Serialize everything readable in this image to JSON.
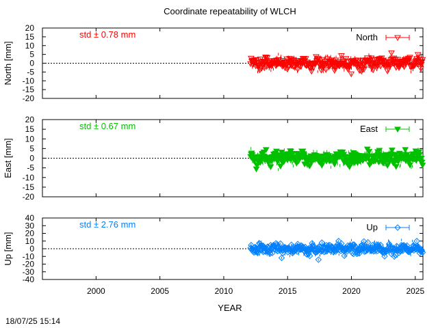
{
  "chart_data": {
    "type": "scatter",
    "title": "Coordinate repeatability of WLCH",
    "xlabel": "YEAR",
    "timestamp": "18/07/25 15:14",
    "xlim": [
      1995.8,
      2025.6
    ],
    "xticks": [
      2000,
      2005,
      2010,
      2015,
      2020,
      2025
    ],
    "data_range": [
      2012.1,
      2025.6
    ],
    "panels": [
      {
        "id": "north",
        "ylabel": "North [mm]",
        "legend": "North",
        "std_label": "std ± 0.78 mm",
        "color": "#ff0000",
        "marker": "triangle-down-open",
        "ylim": [
          -20,
          20
        ],
        "yticks": [
          -20,
          -15,
          -10,
          -5,
          0,
          5,
          10,
          15,
          20
        ],
        "std": 0.78,
        "scatter_mm": 3
      },
      {
        "id": "east",
        "ylabel": "East [mm]",
        "legend": "East",
        "std_label": "std ± 0.67 mm",
        "color": "#00c000",
        "marker": "triangle-down-filled",
        "ylim": [
          -20,
          20
        ],
        "yticks": [
          -20,
          -15,
          -10,
          -5,
          0,
          5,
          10,
          15,
          20
        ],
        "std": 0.67,
        "scatter_mm": 3
      },
      {
        "id": "up",
        "ylabel": "Up [mm]",
        "legend": "Up",
        "std_label": "std ± 2.76 mm",
        "color": "#0080ff",
        "marker": "diamond-open",
        "ylim": [
          -40,
          40
        ],
        "yticks": [
          -40,
          -30,
          -20,
          -10,
          0,
          10,
          20,
          30,
          40
        ],
        "std": 2.76,
        "scatter_mm": 6
      }
    ]
  }
}
